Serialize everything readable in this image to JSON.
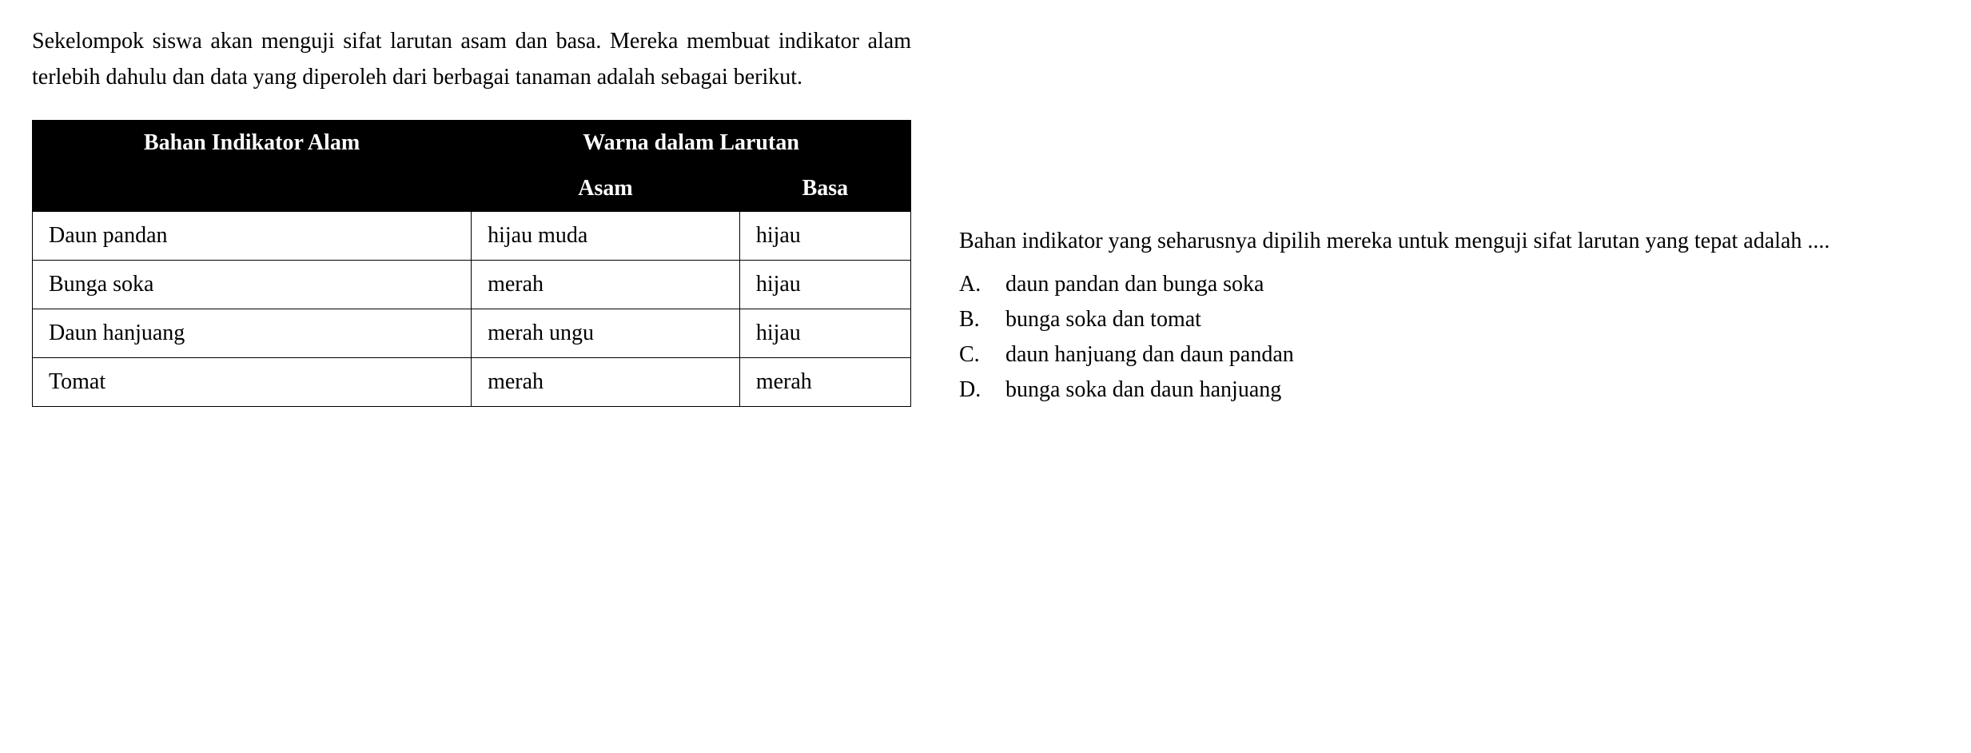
{
  "intro": "Sekelompok siswa akan menguji sifat larutan asam dan basa. Mereka membuat indikator alam terlebih dahulu dan data yang diperoleh dari berbagai tanaman adalah sebagai berikut.",
  "table": {
    "header": {
      "col1": "Bahan Indikator Alam",
      "col2_main": "Warna dalam Larutan",
      "col2_sub1": "Asam",
      "col2_sub2": "Basa"
    },
    "rows": [
      {
        "bahan": "Daun pandan",
        "asam": "hijau muda",
        "basa": "hijau"
      },
      {
        "bahan": "Bunga soka",
        "asam": "merah",
        "basa": "hijau"
      },
      {
        "bahan": "Daun hanjuang",
        "asam": "merah ungu",
        "basa": "hijau"
      },
      {
        "bahan": "Tomat",
        "asam": "merah",
        "basa": "merah"
      }
    ]
  },
  "question": "Bahan indikator yang seharusnya dipilih mereka untuk menguji sifat larutan yang tepat adalah ....",
  "options": [
    {
      "letter": "A.",
      "text": "daun pandan dan bunga soka"
    },
    {
      "letter": "B.",
      "text": "bunga soka dan tomat"
    },
    {
      "letter": "C.",
      "text": "daun hanjuang dan daun pandan"
    },
    {
      "letter": "D.",
      "text": "bunga soka dan daun hanjuang"
    }
  ],
  "styling": {
    "font_family": "Georgia, Times New Roman, serif",
    "font_size_pt": 28,
    "text_color": "#000000",
    "background_color": "#ffffff",
    "table_header_bg": "#000000",
    "table_header_text": "#ffffff",
    "table_border_color": "#000000",
    "line_height": 1.6
  }
}
